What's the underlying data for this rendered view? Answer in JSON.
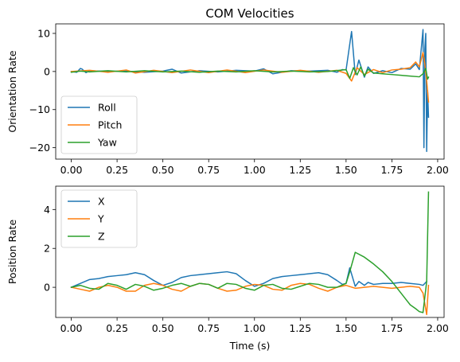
{
  "figure": {
    "title": "COM Velocities"
  },
  "chart_data": [
    {
      "type": "line",
      "title": "COM Velocities",
      "xlabel": "",
      "ylabel": "Orientation Rate",
      "xlim": [
        -0.085,
        2.035
      ],
      "ylim": [
        -23.0,
        12.5
      ],
      "xticks": [
        "0.00",
        "0.25",
        "0.50",
        "0.75",
        "1.00",
        "1.25",
        "1.50",
        "1.75",
        "2.00"
      ],
      "xtick_values": [
        0,
        0.25,
        0.5,
        0.75,
        1.0,
        1.25,
        1.5,
        1.75,
        2.0
      ],
      "yticks": [
        "−20",
        "−10",
        "0",
        "10"
      ],
      "ytick_values": [
        -20,
        -10,
        0,
        10
      ],
      "legend": "lower-left",
      "grid": false,
      "series": [
        {
          "name": "Roll",
          "color": "#1f77b4",
          "x": [
            0,
            0.03,
            0.05,
            0.06,
            0.08,
            0.1,
            0.15,
            0.2,
            0.3,
            0.4,
            0.5,
            0.55,
            0.6,
            0.7,
            0.8,
            0.9,
            1.0,
            1.05,
            1.1,
            1.2,
            1.3,
            1.4,
            1.45,
            1.48,
            1.5,
            1.53,
            1.55,
            1.57,
            1.6,
            1.62,
            1.65,
            1.7,
            1.75,
            1.8,
            1.85,
            1.88,
            1.9,
            1.92,
            1.925,
            1.93,
            1.935,
            1.94,
            1.945,
            1.95
          ],
          "y": [
            0,
            -0.2,
            0.8,
            0.6,
            -0.3,
            0.2,
            0.1,
            0,
            0.1,
            -0.2,
            0.1,
            0.6,
            -0.4,
            0.2,
            -0.1,
            0.3,
            0.1,
            0.7,
            -0.6,
            0.2,
            0.1,
            0.3,
            -0.2,
            0.5,
            0.4,
            10.5,
            -0.8,
            3.0,
            -1.5,
            1.2,
            -0.5,
            0.2,
            -0.3,
            0.8,
            0.6,
            2.0,
            0.5,
            11.0,
            -20.0,
            6.0,
            10.0,
            -21.0,
            -5.0,
            -12.0
          ]
        },
        {
          "name": "Pitch",
          "color": "#ff7f0e",
          "x": [
            0,
            0.1,
            0.2,
            0.3,
            0.35,
            0.45,
            0.55,
            0.65,
            0.75,
            0.85,
            0.95,
            1.05,
            1.15,
            1.25,
            1.35,
            1.45,
            1.5,
            1.53,
            1.56,
            1.6,
            1.65,
            1.7,
            1.75,
            1.8,
            1.85,
            1.88,
            1.9,
            1.92,
            1.93,
            1.94,
            1.95
          ],
          "y": [
            0,
            0.3,
            -0.2,
            0.4,
            -0.4,
            0.3,
            -0.3,
            0.4,
            -0.3,
            0.4,
            -0.3,
            0.4,
            -0.2,
            0.3,
            -0.2,
            0.3,
            -0.5,
            -2.5,
            1.0,
            -0.8,
            0.5,
            -0.3,
            0.4,
            0.6,
            1.0,
            2.5,
            1.2,
            5.0,
            2.0,
            -2.5,
            -8.0
          ]
        },
        {
          "name": "Yaw",
          "color": "#2ca02c",
          "x": [
            0,
            0.05,
            0.1,
            0.2,
            0.3,
            0.4,
            0.5,
            0.6,
            0.7,
            0.8,
            0.9,
            1.0,
            1.1,
            1.2,
            1.3,
            1.4,
            1.5,
            1.52,
            1.54,
            1.56,
            1.58,
            1.6,
            1.62,
            1.65,
            1.7,
            1.75,
            1.8,
            1.85,
            1.9,
            1.92,
            1.935,
            1.945,
            1.95
          ],
          "y": [
            -0.2,
            0.1,
            -0.1,
            0.2,
            -0.1,
            0.2,
            -0.1,
            0.1,
            -0.2,
            0.1,
            -0.1,
            0.2,
            -0.1,
            0.1,
            -0.1,
            0.0,
            0.5,
            -1.8,
            1.0,
            -0.9,
            1.2,
            -1.2,
            0.6,
            -0.4,
            -0.6,
            -0.8,
            -1.0,
            -1.2,
            -1.4,
            -0.6,
            0.8,
            -2.0,
            -1.5
          ]
        }
      ]
    },
    {
      "type": "line",
      "title": "",
      "xlabel": "Time (s)",
      "ylabel": "Position Rate",
      "xlim": [
        -0.085,
        2.035
      ],
      "ylim": [
        -1.55,
        5.2
      ],
      "xticks": [
        "0.00",
        "0.25",
        "0.50",
        "0.75",
        "1.00",
        "1.25",
        "1.50",
        "1.75",
        "2.00"
      ],
      "xtick_values": [
        0,
        0.25,
        0.5,
        0.75,
        1.0,
        1.25,
        1.5,
        1.75,
        2.0
      ],
      "yticks": [
        "0",
        "2",
        "4"
      ],
      "ytick_values": [
        0,
        2,
        4
      ],
      "legend": "upper-left",
      "grid": false,
      "series": [
        {
          "name": "X",
          "color": "#1f77b4",
          "x": [
            0,
            0.05,
            0.1,
            0.15,
            0.2,
            0.25,
            0.3,
            0.35,
            0.4,
            0.45,
            0.5,
            0.55,
            0.6,
            0.65,
            0.7,
            0.75,
            0.8,
            0.85,
            0.9,
            0.95,
            1.0,
            1.05,
            1.1,
            1.15,
            1.2,
            1.25,
            1.3,
            1.35,
            1.4,
            1.45,
            1.48,
            1.5,
            1.52,
            1.55,
            1.57,
            1.6,
            1.62,
            1.65,
            1.7,
            1.75,
            1.8,
            1.85,
            1.9,
            1.92,
            1.94
          ],
          "y": [
            0,
            0.2,
            0.4,
            0.45,
            0.55,
            0.6,
            0.65,
            0.75,
            0.65,
            0.35,
            0.1,
            0.25,
            0.5,
            0.6,
            0.65,
            0.7,
            0.75,
            0.8,
            0.7,
            0.35,
            0.05,
            0.2,
            0.45,
            0.55,
            0.6,
            0.65,
            0.7,
            0.75,
            0.65,
            0.35,
            0.15,
            0.2,
            1.0,
            0.05,
            0.3,
            0.1,
            0.25,
            0.15,
            0.2,
            0.2,
            0.25,
            0.2,
            0.15,
            0.1,
            0.3
          ]
        },
        {
          "name": "Y",
          "color": "#ff7f0e",
          "x": [
            0,
            0.05,
            0.1,
            0.15,
            0.2,
            0.25,
            0.3,
            0.35,
            0.4,
            0.45,
            0.5,
            0.55,
            0.6,
            0.65,
            0.7,
            0.75,
            0.8,
            0.85,
            0.9,
            0.95,
            1.0,
            1.05,
            1.1,
            1.15,
            1.2,
            1.25,
            1.3,
            1.35,
            1.4,
            1.45,
            1.5,
            1.55,
            1.6,
            1.65,
            1.7,
            1.75,
            1.8,
            1.85,
            1.9,
            1.92,
            1.94,
            1.95
          ],
          "y": [
            0,
            -0.1,
            -0.2,
            0.0,
            0.1,
            0.0,
            -0.2,
            -0.2,
            0.1,
            0.2,
            0.1,
            -0.1,
            -0.2,
            0.05,
            0.2,
            0.15,
            -0.05,
            -0.2,
            -0.15,
            0.05,
            0.15,
            0.1,
            -0.1,
            -0.15,
            0.1,
            0.2,
            0.15,
            -0.05,
            -0.2,
            0.0,
            0.1,
            -0.05,
            0.0,
            0.05,
            0.0,
            -0.05,
            0.0,
            0.05,
            0.0,
            -0.3,
            -1.4,
            0.1
          ]
        },
        {
          "name": "Z",
          "color": "#2ca02c",
          "x": [
            0,
            0.05,
            0.1,
            0.15,
            0.2,
            0.25,
            0.3,
            0.35,
            0.4,
            0.45,
            0.5,
            0.55,
            0.6,
            0.65,
            0.7,
            0.75,
            0.8,
            0.85,
            0.9,
            0.95,
            1.0,
            1.05,
            1.1,
            1.15,
            1.2,
            1.25,
            1.3,
            1.35,
            1.4,
            1.45,
            1.5,
            1.52,
            1.55,
            1.6,
            1.65,
            1.7,
            1.75,
            1.8,
            1.85,
            1.88,
            1.9,
            1.92,
            1.93,
            1.94,
            1.95
          ],
          "y": [
            0,
            0.1,
            -0.05,
            -0.1,
            0.2,
            0.1,
            -0.1,
            0.15,
            0.05,
            -0.15,
            -0.05,
            0.1,
            0.2,
            0.05,
            0.2,
            0.15,
            -0.05,
            0.2,
            0.15,
            -0.05,
            -0.15,
            0.1,
            0.15,
            -0.05,
            -0.1,
            0.05,
            0.2,
            0.15,
            0.0,
            0.0,
            0.2,
            0.8,
            1.8,
            1.55,
            1.2,
            0.8,
            0.3,
            -0.3,
            -0.9,
            -1.1,
            -1.25,
            -1.3,
            -0.5,
            0.3,
            4.9
          ]
        }
      ]
    }
  ]
}
